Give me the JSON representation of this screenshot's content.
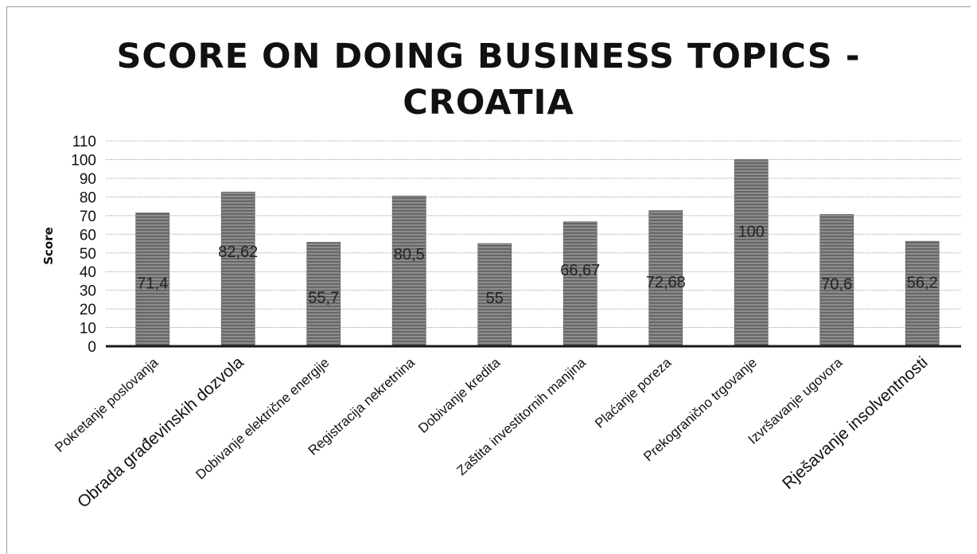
{
  "chart_data": {
    "type": "bar",
    "title": "SCORE  ON DOING BUSINESS TOPICS -\nCROATIA",
    "xlabel": "",
    "ylabel": "Score",
    "ylim": [
      0,
      110
    ],
    "yticks": [
      "0",
      "10",
      "20",
      "30",
      "40",
      "50",
      "60",
      "70",
      "80",
      "90",
      "100",
      "110"
    ],
    "grid": true,
    "legend": "none",
    "categories": [
      "Pokretanje poslovanja",
      "Obrada građevinskih dozvola",
      "Dobivanje električne energije",
      "Registracija nekretnina",
      "Dobivanje kredita",
      "Zaštita investitornih manjina",
      "Plaćanje poreza",
      "Prekogranično trgovanje",
      "Izvršavanje ugovora",
      "Rješavanje insolventnosti"
    ],
    "values": [
      71.4,
      82.62,
      55.7,
      80.5,
      55,
      66.67,
      72.68,
      100,
      70.6,
      56.2
    ],
    "data_labels": [
      "71,4",
      "82,62",
      "55,7",
      "80,5",
      "55",
      "66,67",
      "72,68",
      "100",
      "70,6",
      "56,2"
    ],
    "colors": {
      "bar": "#8c8c8c",
      "bar_hatch": "#5e5e5e",
      "grid": "#b8b8b8",
      "axis": "#1a1a1a"
    }
  }
}
